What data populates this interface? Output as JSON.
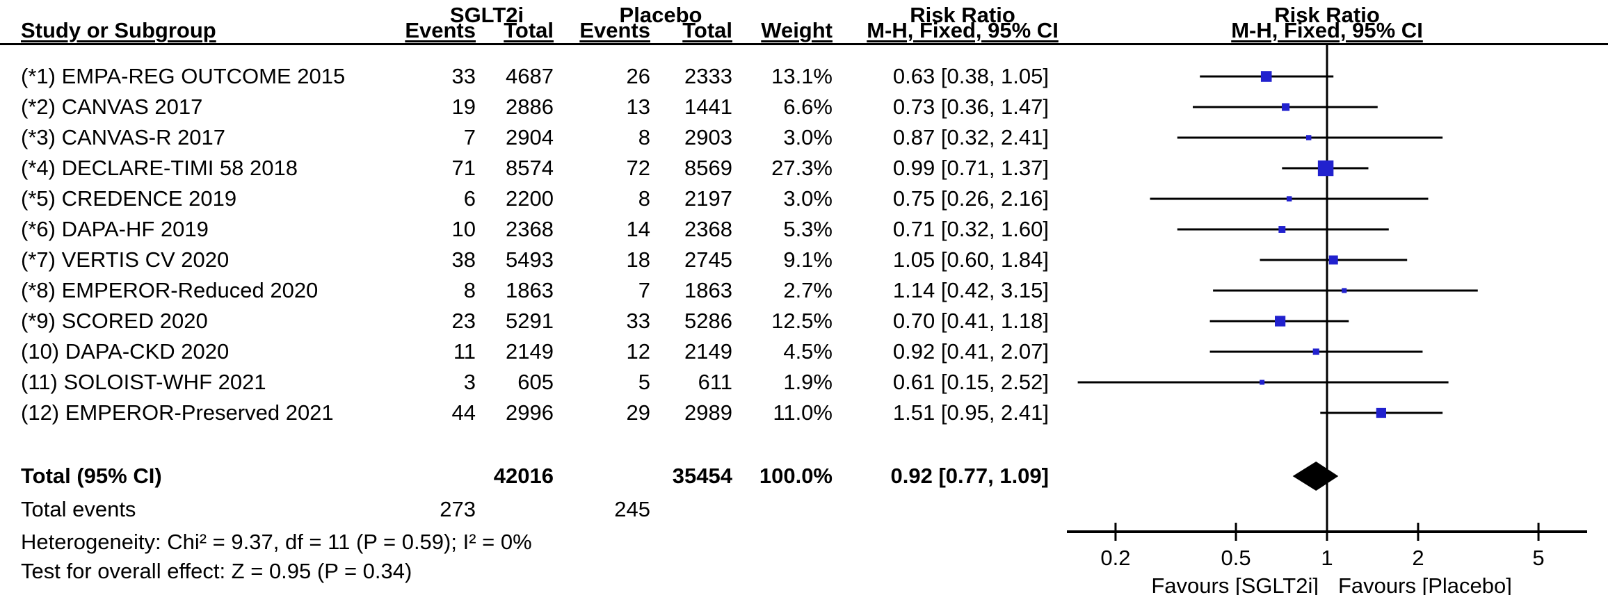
{
  "table_header": {
    "group1": "SGLT2i",
    "group2": "Placebo",
    "study": "Study or Subgroup",
    "events": "Events",
    "total": "Total",
    "weight": "Weight",
    "risk_ratio": "Risk Ratio",
    "method": "M-H, Fixed, 95% CI"
  },
  "chart_data": {
    "type": "forest",
    "effect_measure": "Risk Ratio",
    "model": "M-H, Fixed, 95% CI",
    "x_axis": {
      "scale": "log",
      "xlim": [
        0.13,
        7
      ],
      "ticks": [
        {
          "v": 0.2,
          "label": "0.2"
        },
        {
          "v": 0.5,
          "label": "0.5"
        },
        {
          "v": 1,
          "label": "1"
        },
        {
          "v": 2,
          "label": "2"
        },
        {
          "v": 5,
          "label": "5"
        }
      ],
      "label_left": "Favours [SGLT2i]",
      "label_right": "Favours [Placebo]"
    },
    "studies": [
      {
        "label": "(*1) EMPA-REG OUTCOME 2015",
        "events1": 33,
        "total1": 4687,
        "events2": 26,
        "total2": 2333,
        "weight": "13.1%",
        "weight_value": 13.1,
        "rr": 0.63,
        "ci_low": 0.38,
        "ci_high": 1.05,
        "rr_text": "0.63 [0.38, 1.05]"
      },
      {
        "label": "(*2) CANVAS 2017",
        "events1": 19,
        "total1": 2886,
        "events2": 13,
        "total2": 1441,
        "weight": "6.6%",
        "weight_value": 6.6,
        "rr": 0.73,
        "ci_low": 0.36,
        "ci_high": 1.47,
        "rr_text": "0.73 [0.36, 1.47]"
      },
      {
        "label": "(*3) CANVAS-R 2017",
        "events1": 7,
        "total1": 2904,
        "events2": 8,
        "total2": 2903,
        "weight": "3.0%",
        "weight_value": 3.0,
        "rr": 0.87,
        "ci_low": 0.32,
        "ci_high": 2.41,
        "rr_text": "0.87 [0.32, 2.41]"
      },
      {
        "label": "(*4) DECLARE-TIMI 58 2018",
        "events1": 71,
        "total1": 8574,
        "events2": 72,
        "total2": 8569,
        "weight": "27.3%",
        "weight_value": 27.3,
        "rr": 0.99,
        "ci_low": 0.71,
        "ci_high": 1.37,
        "rr_text": "0.99 [0.71, 1.37]"
      },
      {
        "label": "(*5) CREDENCE 2019",
        "events1": 6,
        "total1": 2200,
        "events2": 8,
        "total2": 2197,
        "weight": "3.0%",
        "weight_value": 3.0,
        "rr": 0.75,
        "ci_low": 0.26,
        "ci_high": 2.16,
        "rr_text": "0.75 [0.26, 2.16]"
      },
      {
        "label": "(*6) DAPA-HF 2019",
        "events1": 10,
        "total1": 2368,
        "events2": 14,
        "total2": 2368,
        "weight": "5.3%",
        "weight_value": 5.3,
        "rr": 0.71,
        "ci_low": 0.32,
        "ci_high": 1.6,
        "rr_text": "0.71 [0.32, 1.60]"
      },
      {
        "label": "(*7) VERTIS CV 2020",
        "events1": 38,
        "total1": 5493,
        "events2": 18,
        "total2": 2745,
        "weight": "9.1%",
        "weight_value": 9.1,
        "rr": 1.05,
        "ci_low": 0.6,
        "ci_high": 1.84,
        "rr_text": "1.05 [0.60, 1.84]"
      },
      {
        "label": "(*8) EMPEROR-Reduced 2020",
        "events1": 8,
        "total1": 1863,
        "events2": 7,
        "total2": 1863,
        "weight": "2.7%",
        "weight_value": 2.7,
        "rr": 1.14,
        "ci_low": 0.42,
        "ci_high": 3.15,
        "rr_text": "1.14 [0.42, 3.15]"
      },
      {
        "label": "(*9) SCORED 2020",
        "events1": 23,
        "total1": 5291,
        "events2": 33,
        "total2": 5286,
        "weight": "12.5%",
        "weight_value": 12.5,
        "rr": 0.7,
        "ci_low": 0.41,
        "ci_high": 1.18,
        "rr_text": "0.70 [0.41, 1.18]"
      },
      {
        "label": "(10) DAPA-CKD 2020",
        "events1": 11,
        "total1": 2149,
        "events2": 12,
        "total2": 2149,
        "weight": "4.5%",
        "weight_value": 4.5,
        "rr": 0.92,
        "ci_low": 0.41,
        "ci_high": 2.07,
        "rr_text": "0.92 [0.41, 2.07]"
      },
      {
        "label": "(11) SOLOIST-WHF 2021",
        "events1": 3,
        "total1": 605,
        "events2": 5,
        "total2": 611,
        "weight": "1.9%",
        "weight_value": 1.9,
        "rr": 0.61,
        "ci_low": 0.15,
        "ci_high": 2.52,
        "rr_text": "0.61 [0.15, 2.52]"
      },
      {
        "label": "(12) EMPEROR-Preserved 2021",
        "events1": 44,
        "total1": 2996,
        "events2": 29,
        "total2": 2989,
        "weight": "11.0%",
        "weight_value": 11.0,
        "rr": 1.51,
        "ci_low": 0.95,
        "ci_high": 2.41,
        "rr_text": "1.51 [0.95, 2.41]"
      }
    ],
    "total": {
      "label": "Total (95% CI)",
      "total1": "42016",
      "total2": "35454",
      "weight": "100.0%",
      "rr": 0.92,
      "ci_low": 0.77,
      "ci_high": 1.09,
      "rr_text": "0.92 [0.77, 1.09]"
    },
    "total_events": {
      "label": "Total events",
      "events1": "273",
      "events2": "245"
    },
    "heterogeneity": "Heterogeneity: Chi² = 9.37, df = 11 (P = 0.59); I² = 0%",
    "overall_effect": "Test for overall effect: Z = 0.95 (P = 0.34)",
    "colors": {
      "marker": "#2121CE",
      "line": "#000000",
      "diamond": "#000000",
      "text": "#000000"
    }
  }
}
